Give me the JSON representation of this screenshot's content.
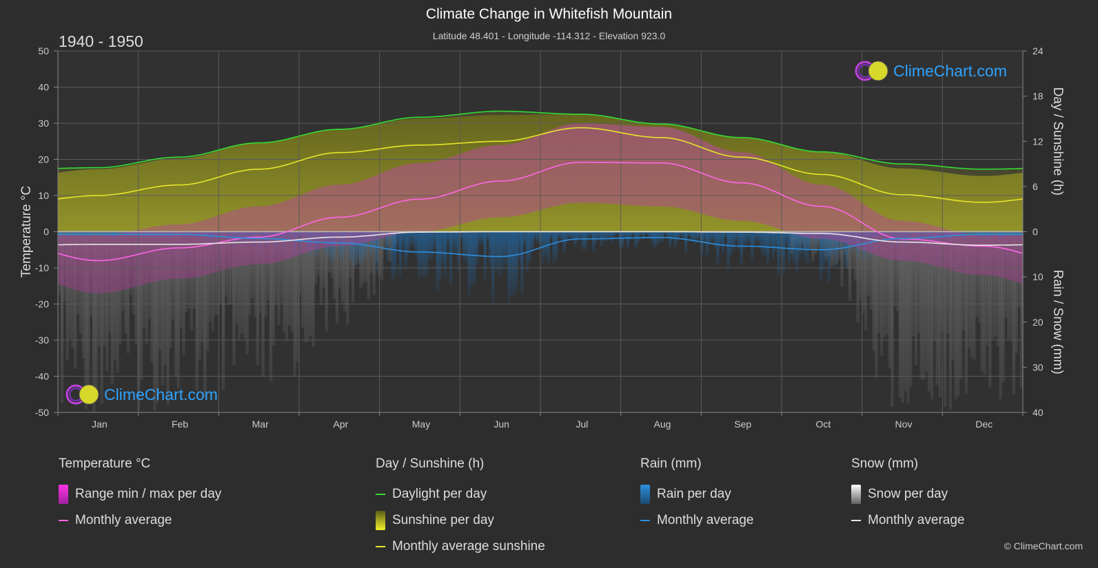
{
  "header": {
    "title": "Climate Change in Whitefish Mountain",
    "subtitle": "Latitude 48.401 - Longitude -114.312 - Elevation 923.0",
    "period": "1940 - 1950"
  },
  "logo": {
    "text": "ClimeChart.com"
  },
  "copyright": "© ClimeChart.com",
  "chart_data": {
    "type": "area",
    "months": [
      "Jan",
      "Feb",
      "Mar",
      "Apr",
      "May",
      "Jun",
      "Jul",
      "Aug",
      "Sep",
      "Oct",
      "Nov",
      "Dec"
    ],
    "y_left": {
      "label": "Temperature °C",
      "range": [
        -50,
        50
      ],
      "ticks": [
        50,
        40,
        30,
        20,
        10,
        0,
        -10,
        -20,
        -30,
        -40,
        -50
      ]
    },
    "y_right_top": {
      "label": "Day / Sunshine (h)",
      "range": [
        0,
        24
      ],
      "ticks": [
        24,
        18,
        12,
        6,
        0
      ]
    },
    "y_right_bottom": {
      "label": "Rain / Snow (mm)",
      "range": [
        0,
        40
      ],
      "ticks": [
        0,
        10,
        20,
        30,
        40
      ]
    },
    "grid": true,
    "series": {
      "daylight_h": [
        8.5,
        9.9,
        11.8,
        13.6,
        15.2,
        16.0,
        15.6,
        14.3,
        12.5,
        10.6,
        9.0,
        8.3
      ],
      "sunshine_avg_h": [
        4.8,
        6.2,
        8.3,
        10.5,
        11.5,
        12.0,
        13.8,
        12.5,
        9.9,
        7.6,
        4.9,
        3.9
      ],
      "temp_monthly_avg_c": [
        -8.0,
        -4.5,
        -1.5,
        4.0,
        9.0,
        14.0,
        19.2,
        19.0,
        13.5,
        7.0,
        -2.0,
        -4.0
      ],
      "temp_daily_max_c": [
        -1.0,
        2.0,
        7.0,
        13.0,
        19.0,
        24.0,
        30.0,
        29.0,
        22.0,
        13.0,
        3.0,
        -1.0
      ],
      "temp_daily_min_c": [
        -17.0,
        -13.0,
        -9.0,
        -4.0,
        0.0,
        4.0,
        8.0,
        7.0,
        3.0,
        -2.0,
        -8.0,
        -12.0
      ],
      "rain_monthly_avg_mm": [
        0.6,
        0.6,
        1.5,
        2.5,
        4.5,
        5.5,
        1.6,
        1.3,
        3.2,
        4.0,
        1.5,
        0.6
      ],
      "snow_monthly_avg_mm": [
        2.8,
        2.8,
        2.3,
        1.2,
        0.1,
        0.0,
        0.0,
        0.0,
        0.1,
        0.4,
        2.3,
        3.0
      ]
    }
  },
  "legend": {
    "temperature": {
      "title": "Temperature °C",
      "range": "Range min / max per day",
      "avg": "Monthly average"
    },
    "sunshine": {
      "title": "Day / Sunshine (h)",
      "daylight": "Daylight per day",
      "sunshine": "Sunshine per day",
      "avg": "Monthly average sunshine"
    },
    "rain": {
      "title": "Rain (mm)",
      "per_day": "Rain per day",
      "avg": "Monthly average"
    },
    "snow": {
      "title": "Snow (mm)",
      "per_day": "Snow per day",
      "avg": "Monthly average"
    }
  },
  "colors": {
    "daylight": "#33dd33",
    "sunshine": "#e6e62a",
    "sunshine_fill": "#8c8c1e",
    "temp_avg": "#ff66e6",
    "temp_range": "#cc33aa",
    "rain": "#2e8fe0",
    "snow": "#e6e6e6"
  }
}
